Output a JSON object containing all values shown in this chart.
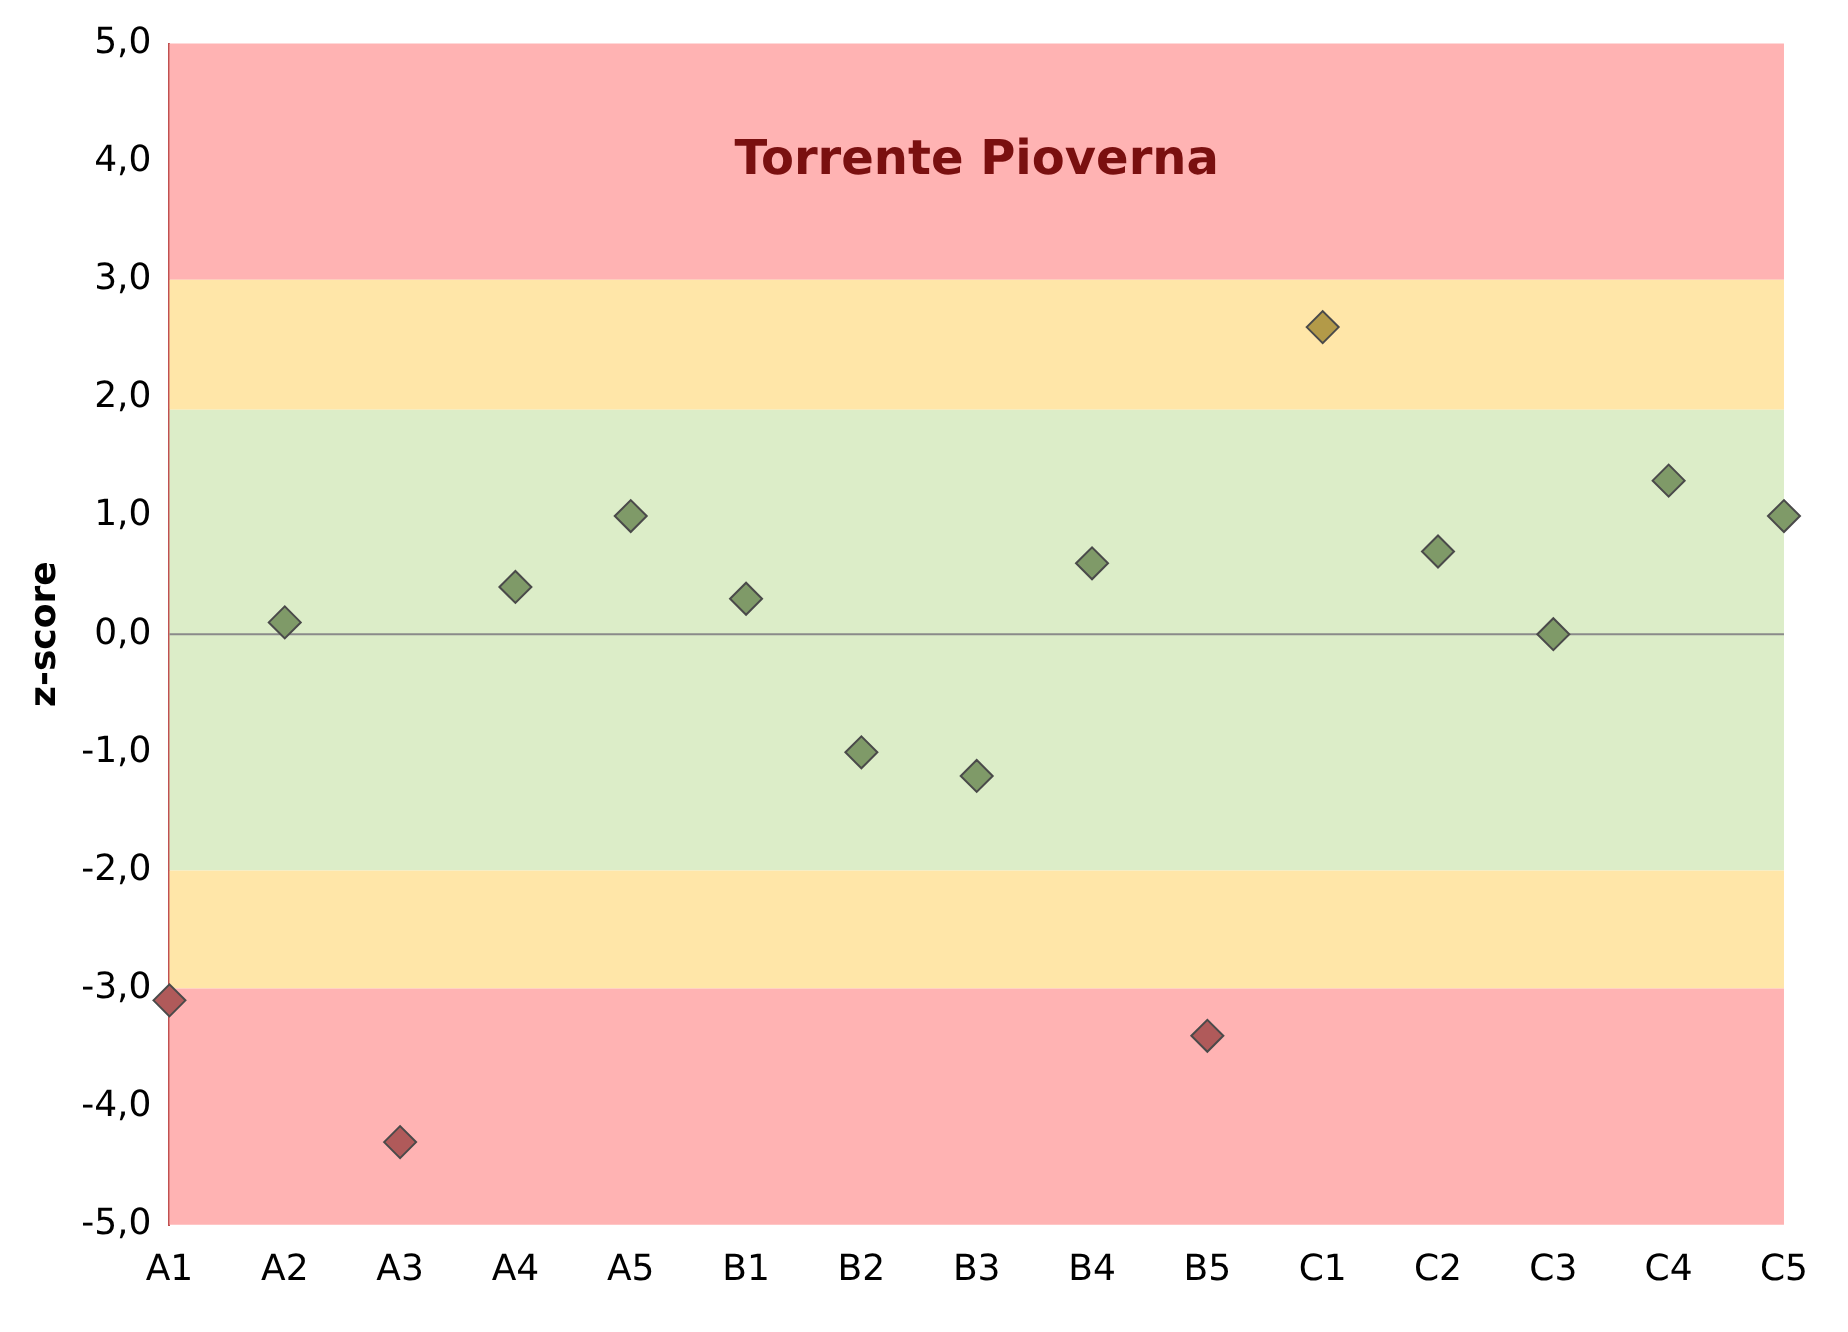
{
  "chart_data": {
    "type": "scatter",
    "title": "Torrente Pioverna",
    "ylabel": "z-score",
    "categories": [
      "A1",
      "A2",
      "A3",
      "A4",
      "A5",
      "B1",
      "B2",
      "B3",
      "B4",
      "B5",
      "C1",
      "C2",
      "C3",
      "C4",
      "C5"
    ],
    "values": [
      -3.1,
      0.1,
      -4.3,
      0.4,
      1.0,
      0.3,
      -1.0,
      -1.2,
      0.6,
      -3.4,
      2.6,
      0.7,
      0.0,
      1.3,
      1.0
    ],
    "colors": [
      "#b05a5a",
      "#7f9a68",
      "#b05a5a",
      "#7f9a68",
      "#7f9a68",
      "#7f9a68",
      "#7f9a68",
      "#7f9a68",
      "#7f9a68",
      "#b05a5a",
      "#b39a48",
      "#7f9a68",
      "#7f9a68",
      "#7f9a68",
      "#7f9a68"
    ],
    "marker": "diamond",
    "grid": false,
    "legend": false,
    "ylim": [
      -5,
      5
    ],
    "yticks": [
      {
        "value": -5,
        "label": "-5,0"
      },
      {
        "value": -4,
        "label": "-4,0"
      },
      {
        "value": -3,
        "label": "-3,0"
      },
      {
        "value": -2,
        "label": "-2,0"
      },
      {
        "value": -1,
        "label": "-1,0"
      },
      {
        "value": 0,
        "label": "0,0"
      },
      {
        "value": 1,
        "label": "1,0"
      },
      {
        "value": 2,
        "label": "2,0"
      },
      {
        "value": 3,
        "label": "3,0"
      },
      {
        "value": 4,
        "label": "4,0"
      },
      {
        "value": 5,
        "label": "5,0"
      }
    ],
    "bands": [
      {
        "axis": "y",
        "from": 3,
        "to": 5,
        "color": "#ffb3b3"
      },
      {
        "axis": "y",
        "from": 1.9,
        "to": 3,
        "color": "#ffe6a8"
      },
      {
        "axis": "y",
        "from": -2,
        "to": 1.9,
        "color": "#dcedc8"
      },
      {
        "axis": "y",
        "from": -3,
        "to": -2,
        "color": "#ffe6a8"
      },
      {
        "axis": "y",
        "from": -5,
        "to": -3,
        "color": "#ffb3b3"
      }
    ],
    "ref_lines": [
      {
        "axis": "y",
        "value": 0,
        "color": "#8a8a8a"
      }
    ]
  }
}
